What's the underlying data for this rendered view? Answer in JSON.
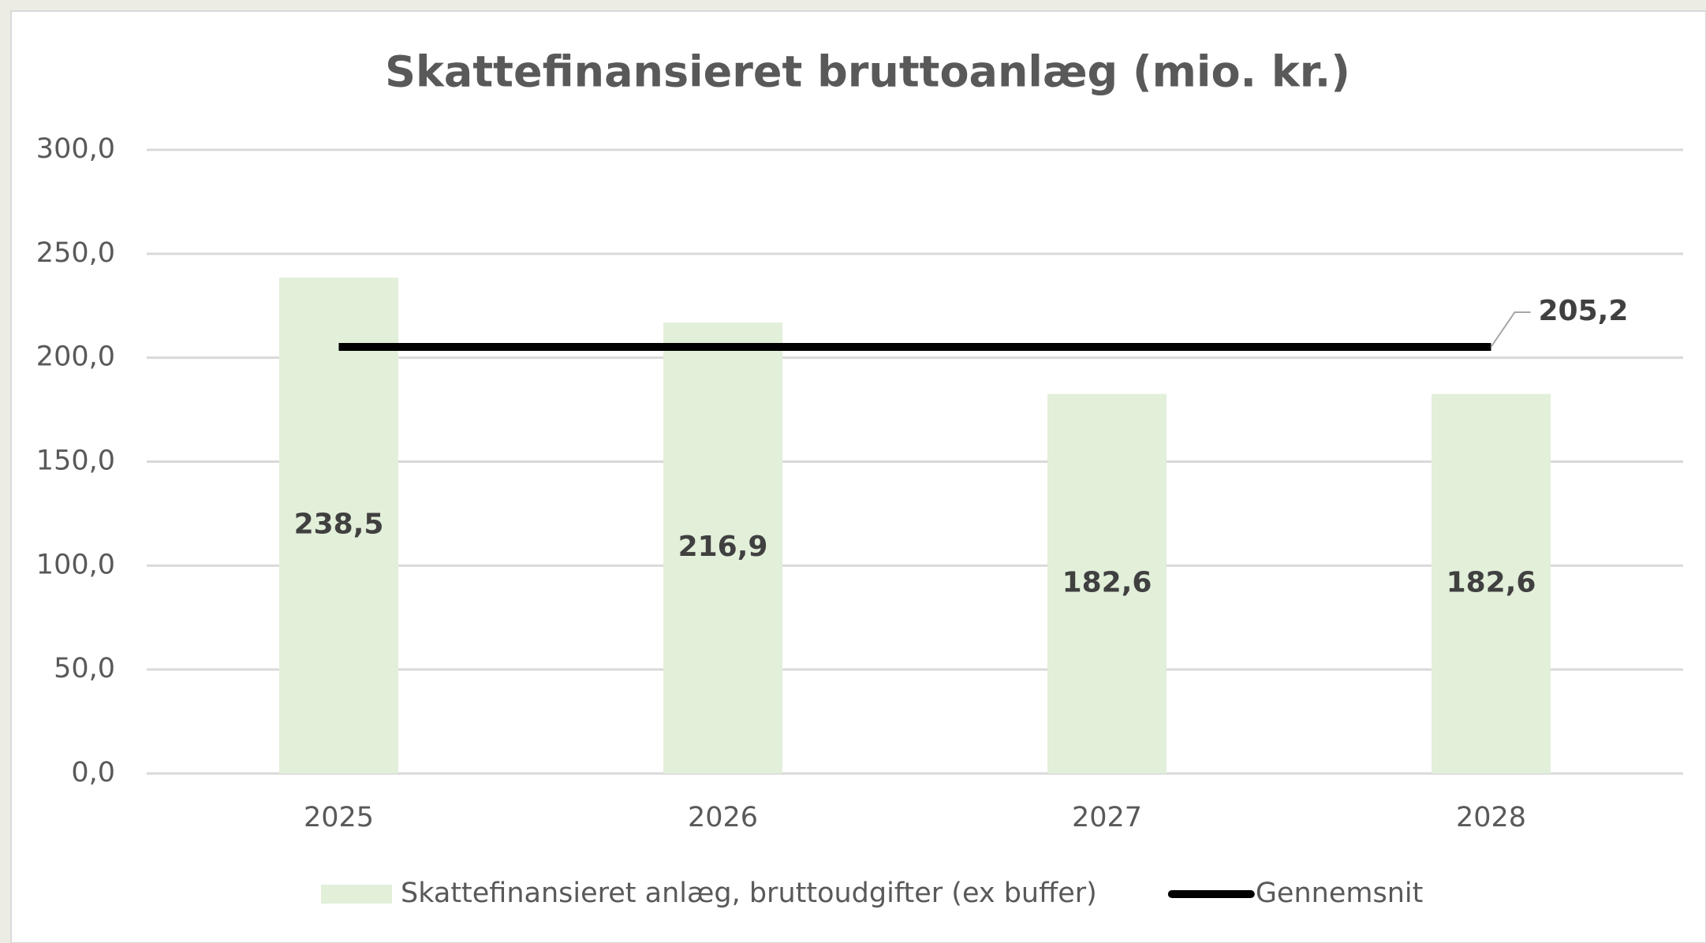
{
  "chart_data": {
    "type": "bar",
    "title": "Skattefinansieret bruttoanlæg (mio. kr.)",
    "categories": [
      "2025",
      "2026",
      "2027",
      "2028"
    ],
    "series": [
      {
        "name": "Skattefinansieret anlæg, bruttoudgifter (ex buffer)",
        "type": "bar",
        "color": "#e2efd9",
        "values": [
          238.5,
          216.9,
          182.6,
          182.6
        ],
        "value_labels": [
          "238,5",
          "216,9",
          "182,6",
          "182,6"
        ]
      },
      {
        "name": "Gennemsnit",
        "type": "line",
        "color": "#000000",
        "values": [
          205.2,
          205.2,
          205.2,
          205.2
        ],
        "value_labels": [
          null,
          null,
          null,
          "205,2"
        ]
      }
    ],
    "ylim": [
      0,
      300
    ],
    "yticks": [
      {
        "value": 0,
        "label": "0,0"
      },
      {
        "value": 50,
        "label": "50,0"
      },
      {
        "value": 100,
        "label": "100,0"
      },
      {
        "value": 150,
        "label": "150,0"
      },
      {
        "value": 200,
        "label": "200,0"
      },
      {
        "value": 250,
        "label": "250,0"
      },
      {
        "value": 300,
        "label": "300,0"
      }
    ],
    "grid": true,
    "legend": "bottom"
  }
}
